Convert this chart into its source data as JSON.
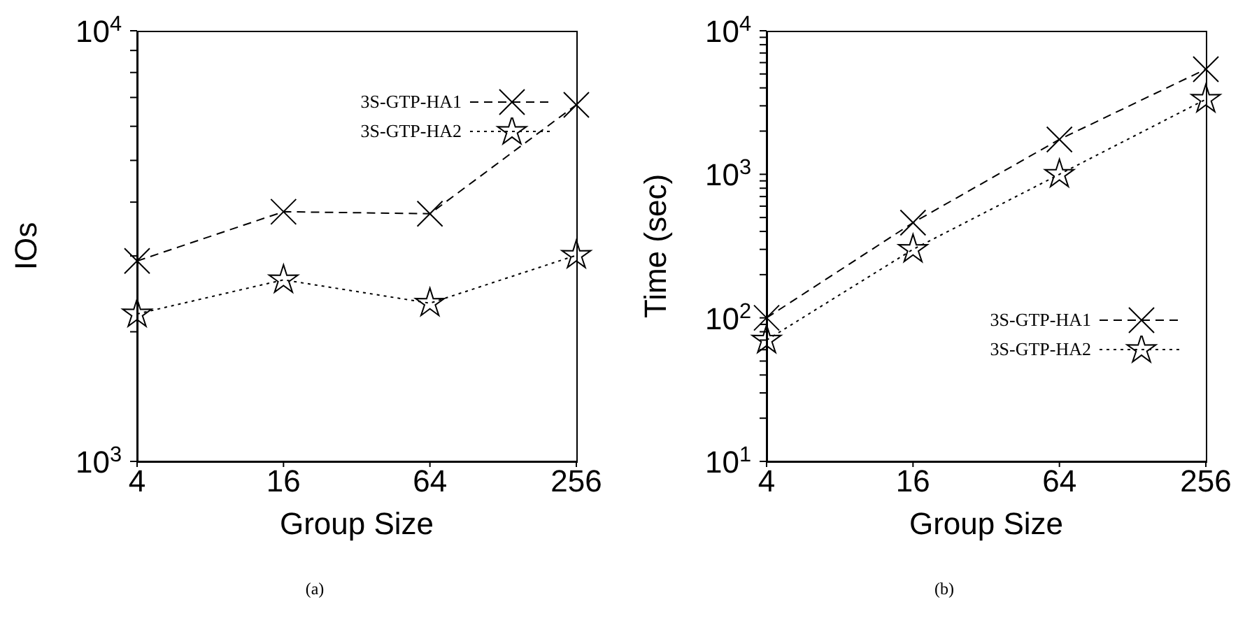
{
  "chart_data": [
    {
      "type": "line",
      "ylabel": "IOs",
      "xlabel": "Group Size",
      "categories": [
        "4",
        "16",
        "64",
        "256"
      ],
      "log": true,
      "ylim": [
        1000,
        10000
      ],
      "yticks": [
        {
          "value": 1000,
          "label": "10$^{3}$"
        },
        {
          "value": 2000,
          "label": null
        },
        {
          "value": 3000,
          "label": null
        },
        {
          "value": 4000,
          "label": null
        },
        {
          "value": 5000,
          "label": null
        },
        {
          "value": 6000,
          "label": null
        },
        {
          "value": 7000,
          "label": null
        },
        {
          "value": 8000,
          "label": null
        },
        {
          "value": 9000,
          "label": null
        },
        {
          "value": 10000,
          "label": "10$^{4}$"
        }
      ],
      "legend": "top right",
      "grid": false,
      "series": [
        {
          "name": "3S-GTP-HA1",
          "color": "#000000",
          "marker": "cross",
          "line_style": "dashed",
          "values": [
            2920,
            3800,
            3760,
            6730
          ]
        },
        {
          "name": "3S-GTP-HA2",
          "color": "#000000",
          "marker": "star",
          "line_style": "dotted",
          "values": [
            2200,
            2640,
            2330,
            3010
          ]
        }
      ],
      "annotations": [
        "(a)"
      ]
    },
    {
      "type": "line",
      "ylabel": "Time (sec)",
      "xlabel": "Group Size",
      "categories": [
        "4",
        "16",
        "64",
        "256"
      ],
      "log": true,
      "ylim": [
        10,
        10000
      ],
      "yticks": [
        {
          "value": 10,
          "label": "10$^{1}$"
        },
        {
          "value": 20,
          "label": null
        },
        {
          "value": 30,
          "label": null
        },
        {
          "value": 40,
          "label": null
        },
        {
          "value": 50,
          "label": null
        },
        {
          "value": 60,
          "label": null
        },
        {
          "value": 70,
          "label": null
        },
        {
          "value": 80,
          "label": null
        },
        {
          "value": 90,
          "label": null
        },
        {
          "value": 100,
          "label": "10$^{2}$"
        },
        {
          "value": 200,
          "label": null
        },
        {
          "value": 300,
          "label": null
        },
        {
          "value": 400,
          "label": null
        },
        {
          "value": 500,
          "label": null
        },
        {
          "value": 600,
          "label": null
        },
        {
          "value": 700,
          "label": null
        },
        {
          "value": 800,
          "label": null
        },
        {
          "value": 900,
          "label": null
        },
        {
          "value": 1000,
          "label": "10$^{3}$"
        },
        {
          "value": 2000,
          "label": null
        },
        {
          "value": 3000,
          "label": null
        },
        {
          "value": 4000,
          "label": null
        },
        {
          "value": 5000,
          "label": null
        },
        {
          "value": 6000,
          "label": null
        },
        {
          "value": 7000,
          "label": null
        },
        {
          "value": 8000,
          "label": null
        },
        {
          "value": 9000,
          "label": null
        },
        {
          "value": 10000,
          "label": "10$^{4}$"
        }
      ],
      "legend": "bottom right",
      "grid": false,
      "series": [
        {
          "name": "3S-GTP-HA1",
          "color": "#000000",
          "marker": "cross",
          "line_style": "dashed",
          "values": [
            100,
            460,
            1750,
            5400
          ]
        },
        {
          "name": "3S-GTP-HA2",
          "color": "#000000",
          "marker": "star",
          "line_style": "dotted",
          "values": [
            70,
            300,
            1000,
            3330
          ]
        }
      ],
      "annotations": [
        "(b)"
      ]
    }
  ]
}
